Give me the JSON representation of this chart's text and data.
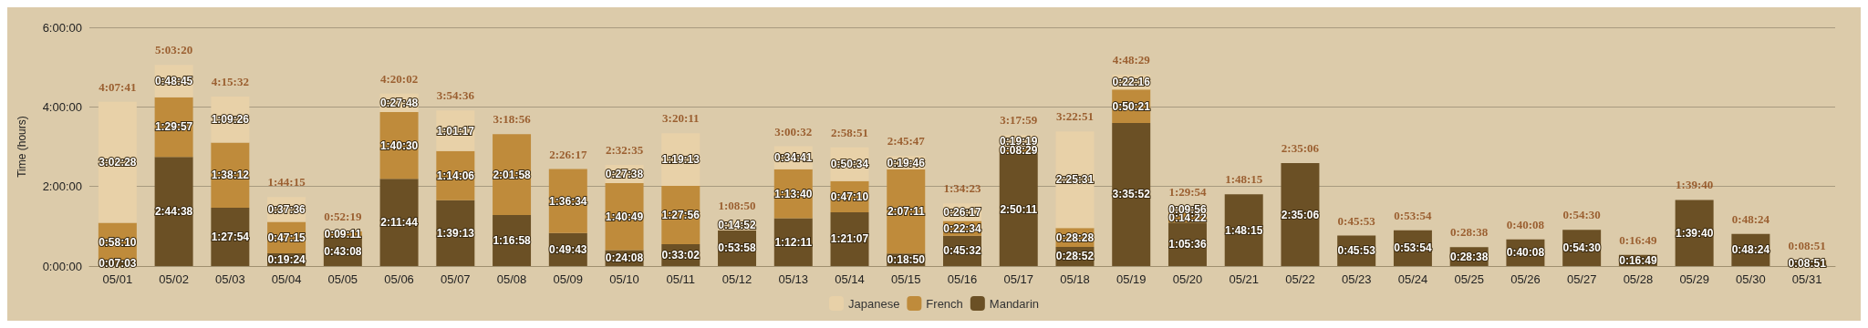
{
  "chart_data": {
    "type": "bar",
    "stacked": true,
    "ylabel": "Time (hours)",
    "categories": [
      "05/01",
      "05/02",
      "05/03",
      "05/04",
      "05/05",
      "05/06",
      "05/07",
      "05/08",
      "05/09",
      "05/10",
      "05/11",
      "05/12",
      "05/13",
      "05/14",
      "05/15",
      "05/16",
      "05/17",
      "05/18",
      "05/19",
      "05/20",
      "05/21",
      "05/22",
      "05/23",
      "05/24",
      "05/25",
      "05/26",
      "05/27",
      "05/28",
      "05/29",
      "05/30",
      "05/31"
    ],
    "series": [
      {
        "name": "Mandarin",
        "color": "#6b5025",
        "values": [
          0.1175,
          2.7439,
          1.465,
          0.3233,
          0.7189,
          2.1956,
          1.6536,
          1.2828,
          0.8286,
          0.4022,
          0.5506,
          0.8994,
          1.2031,
          1.3519,
          0.3139,
          0.7589,
          2.8364,
          0.4811,
          3.5978,
          1.0933,
          1.8042,
          2.585,
          0.7647,
          0.8983,
          0.4772,
          0.6689,
          0.9083,
          0.2803,
          1.6611,
          0.8067,
          0.1475
        ],
        "value_labels": [
          "0:07:03",
          "2:44:38",
          "1:27:54",
          "0:19:24",
          "0:43:08",
          "2:11:44",
          "1:39:13",
          "1:16:58",
          "0:49:43",
          "0:24:08",
          "0:33:02",
          "0:53:58",
          "1:12:11",
          "1:21:07",
          "0:18:50",
          "0:45:32",
          "2:50:11",
          "0:28:52",
          "3:35:52",
          "1:05:36",
          "1:48:15",
          "2:35:06",
          "0:45:53",
          "0:53:54",
          "0:28:38",
          "0:40:08",
          "0:54:30",
          "0:16:49",
          "1:39:40",
          "0:48:24",
          "0:08:51"
        ]
      },
      {
        "name": "French",
        "color": "#bf8b3b",
        "values": [
          0.9694,
          1.4992,
          1.6367,
          0.7875,
          0.1531,
          1.675,
          1.235,
          2.0328,
          1.6094,
          1.6803,
          1.4656,
          null,
          1.2278,
          0.7861,
          2.1197,
          0.3761,
          0.1414,
          0.4744,
          0.8392,
          0.2394,
          null,
          null,
          null,
          null,
          null,
          null,
          null,
          null,
          null,
          null,
          null
        ],
        "value_labels": [
          "0:58:10",
          "1:29:57",
          "1:38:12",
          "0:47:15",
          "0:09:11",
          "1:40:30",
          "1:14:06",
          "2:01:58",
          "1:36:34",
          "1:40:49",
          "1:27:56",
          null,
          "1:13:40",
          "0:47:10",
          "2:07:11",
          "0:22:34",
          "0:08:29",
          "0:28:28",
          "0:50:21",
          "0:14:22",
          null,
          null,
          null,
          null,
          null,
          null,
          null,
          null,
          null,
          null,
          null
        ]
      },
      {
        "name": "Japanese",
        "color": "#e8d1a8",
        "values": [
          3.0411,
          0.8125,
          1.1572,
          0.6267,
          null,
          0.4633,
          1.0214,
          null,
          null,
          0.4606,
          1.3203,
          0.2478,
          0.5781,
          0.8428,
          0.3294,
          0.4381,
          0.3219,
          2.4253,
          0.3711,
          0.1656,
          null,
          null,
          null,
          null,
          null,
          null,
          null,
          null,
          null,
          null,
          null
        ],
        "value_labels": [
          "3:02:28",
          "0:48:45",
          "1:09:26",
          "0:37:36",
          null,
          "0:27:48",
          "1:01:17",
          null,
          null,
          "0:27:38",
          "1:19:13",
          "0:14:52",
          "0:34:41",
          "0:50:34",
          "0:19:46",
          "0:26:17",
          "0:19:19",
          "2:25:31",
          "0:22:16",
          "0:09:56",
          null,
          null,
          null,
          null,
          null,
          null,
          null,
          null,
          null,
          null,
          null
        ]
      }
    ],
    "totals": [
      "4:07:41",
      "5:03:20",
      "4:15:32",
      "1:44:15",
      "0:52:19",
      "4:20:02",
      "3:54:36",
      "3:18:56",
      "2:26:17",
      "2:32:35",
      "3:20:11",
      "1:08:50",
      "3:00:32",
      "2:58:51",
      "2:45:47",
      "1:34:23",
      "3:17:59",
      "3:22:51",
      "4:48:29",
      "1:29:54",
      "1:48:15",
      "2:35:06",
      "0:45:53",
      "0:53:54",
      "0:28:38",
      "0:40:08",
      "0:54:30",
      "0:16:49",
      "1:39:40",
      "0:48:24",
      "0:08:51"
    ],
    "ylim": [
      0,
      6
    ],
    "yticks": [
      {
        "value": 0,
        "label": "0:00:00"
      },
      {
        "value": 2,
        "label": "2:00:00"
      },
      {
        "value": 4,
        "label": "4:00:00"
      },
      {
        "value": 6,
        "label": "6:00:00"
      }
    ],
    "grid": "y",
    "legend": "bottom"
  }
}
